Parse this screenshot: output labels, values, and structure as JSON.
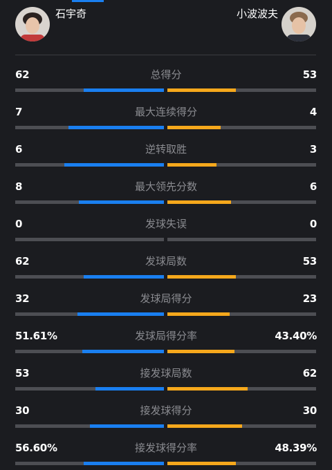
{
  "players": {
    "left": {
      "name": "石宇奇"
    },
    "right": {
      "name": "小波波夫"
    }
  },
  "colors": {
    "left_bar": "#1a7ff0",
    "right_bar": "#f6a81c",
    "track": "#4d4e53"
  },
  "stats": [
    {
      "label": "总得分",
      "left": "62",
      "right": "53",
      "left_fill": 0.54,
      "right_fill": 0.46
    },
    {
      "label": "最大连续得分",
      "left": "7",
      "right": "4",
      "left_fill": 0.64,
      "right_fill": 0.36
    },
    {
      "label": "逆转取胜",
      "left": "6",
      "right": "3",
      "left_fill": 0.67,
      "right_fill": 0.33
    },
    {
      "label": "最大领先分数",
      "left": "8",
      "right": "6",
      "left_fill": 0.57,
      "right_fill": 0.43
    },
    {
      "label": "发球失误",
      "left": "0",
      "right": "0",
      "left_fill": 0,
      "right_fill": 0
    },
    {
      "label": "发球局数",
      "left": "62",
      "right": "53",
      "left_fill": 0.54,
      "right_fill": 0.46
    },
    {
      "label": "发球局得分",
      "left": "32",
      "right": "23",
      "left_fill": 0.58,
      "right_fill": 0.42
    },
    {
      "label": "发球局得分率",
      "left": "51.61%",
      "right": "43.40%",
      "left_fill": 0.55,
      "right_fill": 0.45
    },
    {
      "label": "接发球局数",
      "left": "53",
      "right": "62",
      "left_fill": 0.46,
      "right_fill": 0.54
    },
    {
      "label": "接发球得分",
      "left": "30",
      "right": "30",
      "left_fill": 0.5,
      "right_fill": 0.5
    },
    {
      "label": "接发球得分率",
      "left": "56.60%",
      "right": "48.39%",
      "left_fill": 0.54,
      "right_fill": 0.46
    }
  ]
}
